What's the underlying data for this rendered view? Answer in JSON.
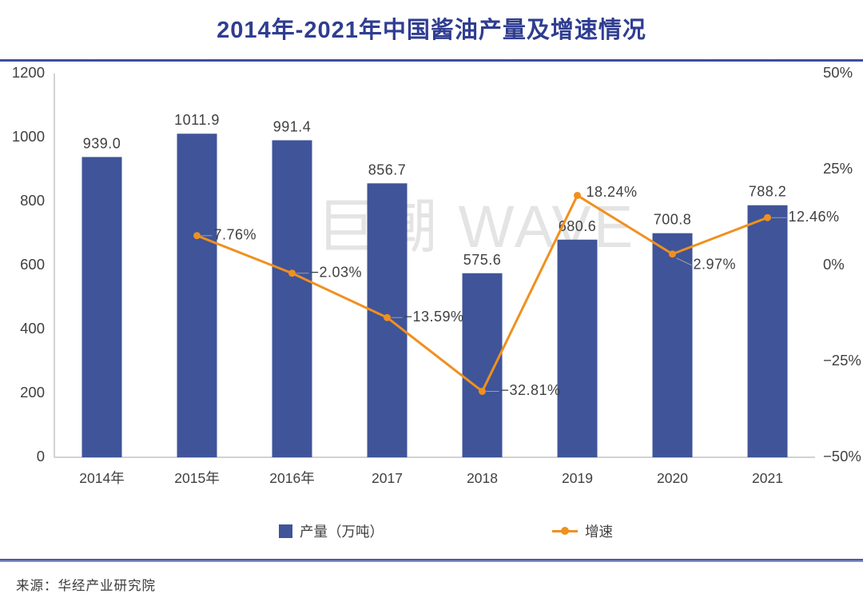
{
  "title": "2014年-2021年中国酱油产量及增速情况",
  "watermark": "巨潮 WAVE",
  "source": "来源：华经产业研究院",
  "legend": {
    "production": "产量（万吨）",
    "growth": "增速"
  },
  "colors": {
    "bar": "#3f5499",
    "line": "#f0901e",
    "title": "#2f3d91",
    "watermark": "#e4e4e4",
    "axis_line": "#c4c4c4",
    "label_text": "#404040",
    "leader_line": "#9e9e9e"
  },
  "chart_data": {
    "type": "combo-bar-line",
    "title": "2014年-2021年中国酱油产量及增速情况",
    "categories": [
      "2014年",
      "2015年",
      "2016年",
      "2017",
      "2018",
      "2019",
      "2020",
      "2021"
    ],
    "series": [
      {
        "name": "产量（万吨）",
        "type": "bar",
        "y_axis": "left",
        "values": [
          939.0,
          1011.9,
          991.4,
          856.7,
          575.6,
          680.6,
          700.8,
          788.2
        ],
        "labels": [
          "939.0",
          "1011.9",
          "991.4",
          "856.7",
          "575.6",
          "680.6",
          "700.8",
          "788.2"
        ]
      },
      {
        "name": "增速",
        "type": "line",
        "y_axis": "right",
        "values": [
          null,
          7.76,
          -2.03,
          -13.59,
          -32.81,
          18.24,
          2.97,
          12.46
        ],
        "labels": [
          null,
          "7.76%",
          "−2.03%",
          "−13.59%",
          "−32.81%",
          "18.24%",
          "2.97%",
          "12.46%"
        ]
      }
    ],
    "left_axis": {
      "min": 0,
      "max": 1200,
      "tick_labels": [
        "1200",
        "1000",
        "800",
        "600",
        "400",
        "200",
        "0"
      ]
    },
    "right_axis": {
      "min": -50,
      "max": 50,
      "tick_labels": [
        "50%",
        "25%",
        "0%",
        "−25%",
        "−50%"
      ]
    },
    "grid": false,
    "legend_position": "bottom"
  }
}
